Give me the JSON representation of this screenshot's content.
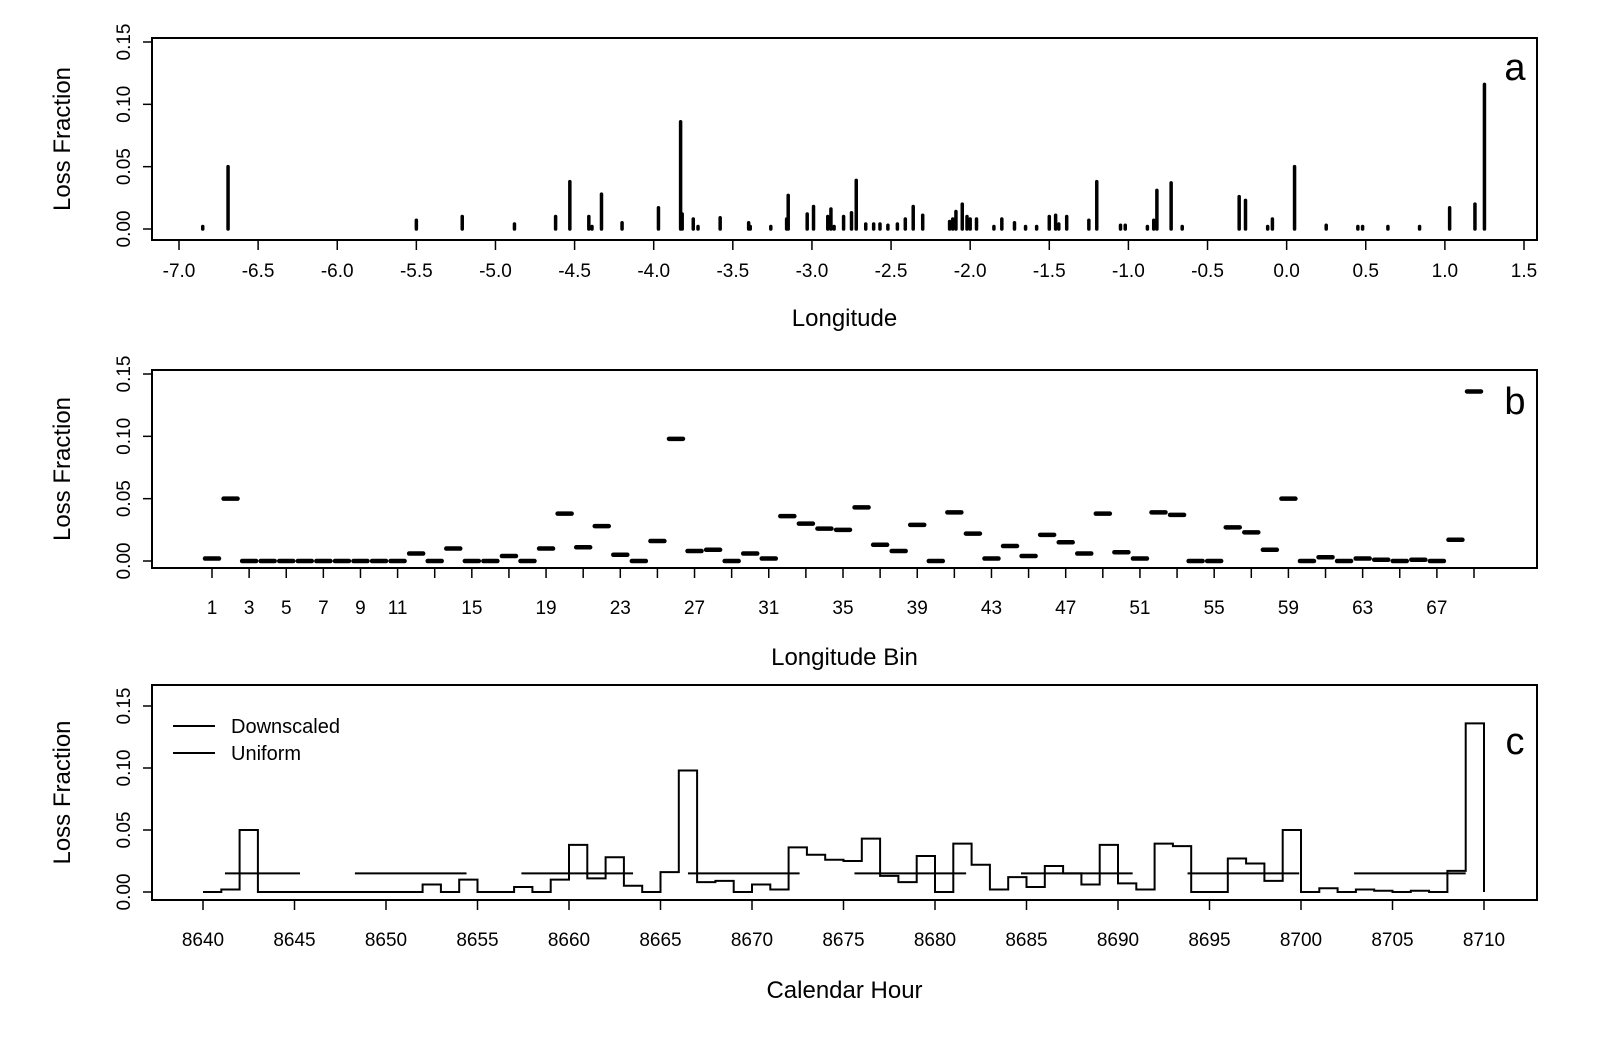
{
  "chart_data": [
    {
      "type": "bar",
      "panel_letter": "a",
      "xlabel": "Longitude",
      "ylabel": "Loss Fraction",
      "xlim": [
        -7.0,
        1.5
      ],
      "ylim": [
        0,
        0.15
      ],
      "xticks": [
        "-7.0",
        "-6.5",
        "-6.0",
        "-5.5",
        "-5.0",
        "-4.5",
        "-4.0",
        "-3.5",
        "-3.0",
        "-2.5",
        "-2.0",
        "-1.5",
        "-1.0",
        "-0.5",
        "0.0",
        "0.5",
        "1.0",
        "1.5"
      ],
      "yticks": [
        "0.00",
        "0.05",
        "0.10",
        "0.15"
      ],
      "points": [
        [
          -6.85,
          0.002
        ],
        [
          -6.69,
          0.05
        ],
        [
          -5.5,
          0.007
        ],
        [
          -5.21,
          0.01
        ],
        [
          -4.88,
          0.004
        ],
        [
          -4.62,
          0.01
        ],
        [
          -4.53,
          0.038
        ],
        [
          -4.41,
          0.01
        ],
        [
          -4.39,
          0.002
        ],
        [
          -4.33,
          0.028
        ],
        [
          -4.2,
          0.005
        ],
        [
          -3.97,
          0.017
        ],
        [
          -3.83,
          0.086
        ],
        [
          -3.82,
          0.012
        ],
        [
          -3.75,
          0.008
        ],
        [
          -3.72,
          0.002
        ],
        [
          -3.58,
          0.009
        ],
        [
          -3.4,
          0.005
        ],
        [
          -3.39,
          0.002
        ],
        [
          -3.26,
          0.002
        ],
        [
          -3.16,
          0.008
        ],
        [
          -3.15,
          0.027
        ],
        [
          -3.03,
          0.012
        ],
        [
          -2.99,
          0.018
        ],
        [
          -2.9,
          0.01
        ],
        [
          -2.88,
          0.016
        ],
        [
          -2.86,
          0.002
        ],
        [
          -2.8,
          0.01
        ],
        [
          -2.75,
          0.013
        ],
        [
          -2.72,
          0.039
        ],
        [
          -2.66,
          0.004
        ],
        [
          -2.61,
          0.004
        ],
        [
          -2.57,
          0.004
        ],
        [
          -2.52,
          0.003
        ],
        [
          -2.46,
          0.004
        ],
        [
          -2.41,
          0.008
        ],
        [
          -2.36,
          0.018
        ],
        [
          -2.3,
          0.011
        ],
        [
          -2.13,
          0.006
        ],
        [
          -2.11,
          0.008
        ],
        [
          -2.09,
          0.014
        ],
        [
          -2.05,
          0.02
        ],
        [
          -2.02,
          0.01
        ],
        [
          -2.0,
          0.008
        ],
        [
          -1.96,
          0.008
        ],
        [
          -1.85,
          0.002
        ],
        [
          -1.8,
          0.008
        ],
        [
          -1.72,
          0.005
        ],
        [
          -1.65,
          0.002
        ],
        [
          -1.58,
          0.002
        ],
        [
          -1.5,
          0.01
        ],
        [
          -1.46,
          0.011
        ],
        [
          -1.44,
          0.004
        ],
        [
          -1.39,
          0.01
        ],
        [
          -1.25,
          0.007
        ],
        [
          -1.2,
          0.038
        ],
        [
          -1.05,
          0.003
        ],
        [
          -1.02,
          0.003
        ],
        [
          -0.88,
          0.002
        ],
        [
          -0.84,
          0.007
        ],
        [
          -0.82,
          0.031
        ],
        [
          -0.73,
          0.037
        ],
        [
          -0.66,
          0.002
        ],
        [
          -0.3,
          0.026
        ],
        [
          -0.26,
          0.023
        ],
        [
          -0.12,
          0.002
        ],
        [
          -0.09,
          0.008
        ],
        [
          0.05,
          0.05
        ],
        [
          0.25,
          0.003
        ],
        [
          0.45,
          0.002
        ],
        [
          0.48,
          0.002
        ],
        [
          0.64,
          0.002
        ],
        [
          0.84,
          0.002
        ],
        [
          1.03,
          0.017
        ],
        [
          1.19,
          0.02
        ],
        [
          1.25,
          0.116
        ]
      ]
    },
    {
      "type": "scatter",
      "panel_letter": "b",
      "xlabel": "Longitude Bin",
      "ylabel": "Loss Fraction",
      "xlim": [
        1,
        69
      ],
      "ylim": [
        0,
        0.15
      ],
      "xtick_labels": [
        "1",
        "3",
        "5",
        "7",
        "9",
        "11",
        "15",
        "19",
        "23",
        "27",
        "31",
        "35",
        "39",
        "43",
        "47",
        "51",
        "55",
        "59",
        "63",
        "67"
      ],
      "yticks": [
        "0.00",
        "0.05",
        "0.10",
        "0.15"
      ],
      "values": [
        0.002,
        0.05,
        0,
        0,
        0,
        0,
        0,
        0,
        0,
        0,
        0,
        0.006,
        0,
        0.01,
        0,
        0,
        0.004,
        0,
        0.01,
        0.038,
        0.011,
        0.028,
        0.005,
        0,
        0.016,
        0.098,
        0.008,
        0.009,
        0,
        0.006,
        0.002,
        0.036,
        0.03,
        0.026,
        0.025,
        0.043,
        0.013,
        0.008,
        0.029,
        0,
        0.039,
        0.022,
        0.002,
        0.012,
        0.004,
        0.021,
        0.015,
        0.006,
        0.038,
        0.007,
        0.002,
        0.039,
        0.037,
        0,
        0,
        0.027,
        0.023,
        0.009,
        0.05,
        0,
        0.003,
        0,
        0.002,
        0.001,
        0,
        0.001,
        0,
        0.017,
        0.136
      ]
    },
    {
      "type": "line",
      "panel_letter": "c",
      "xlabel": "Calendar Hour",
      "ylabel": "Loss Fraction",
      "xlim": [
        8640,
        8710
      ],
      "ylim": [
        0,
        0.15
      ],
      "xticks": [
        "8640",
        "8645",
        "8650",
        "8655",
        "8660",
        "8665",
        "8670",
        "8675",
        "8680",
        "8685",
        "8690",
        "8695",
        "8700",
        "8705",
        "8710"
      ],
      "yticks": [
        "0.00",
        "0.05",
        "0.10",
        "0.15"
      ],
      "legend": [
        "Downscaled",
        "Uniform"
      ],
      "legend_position": "top-left",
      "downscaled_start_hour": 8641,
      "uniform_value": 0.015,
      "uniform_segments": [
        [
          8641.2,
          8645.3
        ],
        [
          8648.3,
          8654.4
        ],
        [
          8657.4,
          8663.5
        ],
        [
          8666.5,
          8672.6
        ],
        [
          8675.6,
          8681.7
        ],
        [
          8684.7,
          8690.8
        ],
        [
          8693.8,
          8699.9
        ],
        [
          8702.9,
          8709.0
        ]
      ]
    }
  ]
}
